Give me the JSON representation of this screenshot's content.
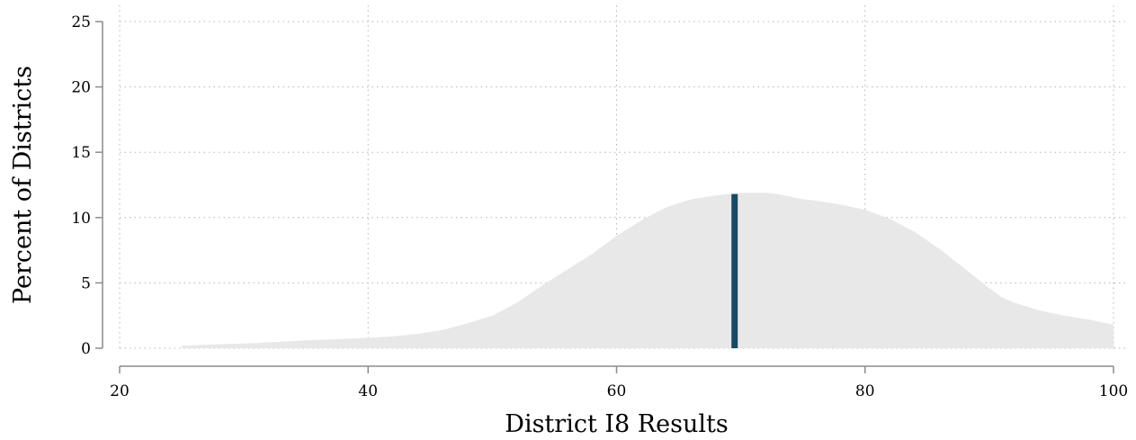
{
  "chart_data": {
    "type": "area",
    "xlabel": "District I8 Results",
    "ylabel": "Percent of Districts",
    "xlim": [
      20,
      100
    ],
    "ylim": [
      0,
      25
    ],
    "xticks": [
      20,
      40,
      60,
      80,
      100
    ],
    "yticks": [
      0,
      5,
      10,
      15,
      20,
      25
    ],
    "grid": true,
    "colors": {
      "area": "#e8e8e8",
      "marker": "#1a4a63"
    },
    "series": [
      {
        "x": [
          25,
          28,
          31,
          33,
          35,
          38,
          40,
          42,
          44,
          46,
          48,
          50,
          52,
          54,
          56,
          58,
          60,
          62,
          64,
          66,
          68,
          70,
          72,
          73,
          74,
          75,
          76,
          78,
          80,
          82,
          84,
          86,
          88,
          90,
          91,
          92,
          94,
          96,
          98,
          100
        ],
        "y": [
          0.2,
          0.3,
          0.4,
          0.5,
          0.6,
          0.7,
          0.8,
          0.9,
          1.1,
          1.4,
          1.9,
          2.5,
          3.5,
          4.8,
          6.0,
          7.2,
          8.6,
          9.8,
          10.8,
          11.4,
          11.7,
          11.9,
          11.9,
          11.8,
          11.6,
          11.4,
          11.3,
          11.0,
          10.6,
          9.9,
          8.9,
          7.6,
          6.1,
          4.6,
          3.9,
          3.5,
          2.9,
          2.5,
          2.2,
          1.8
        ]
      }
    ],
    "marker": {
      "x": 69.5,
      "y": 11.8
    }
  }
}
